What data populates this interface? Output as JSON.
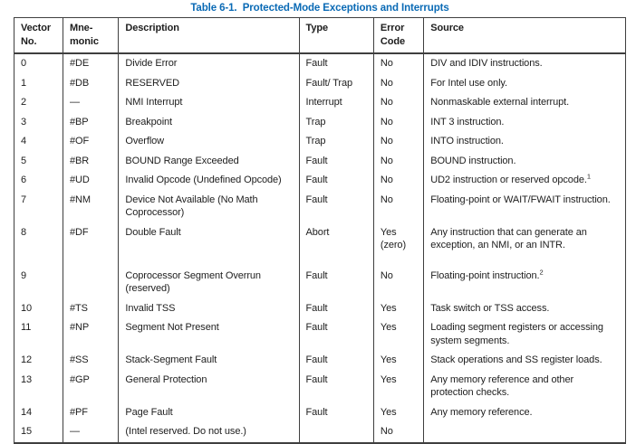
{
  "title": "Table 6-1.  Protected-Mode Exceptions and Interrupts",
  "colors": {
    "title_blue": "#0a6ab5",
    "border": "#3f3f3f",
    "text": "#1d1d1d",
    "background": "#ffffff"
  },
  "table": {
    "columns": [
      "Vector\nNo.",
      "Mne-\nmonic",
      "Description",
      "Type",
      "Error\nCode",
      "Source"
    ],
    "rows": [
      {
        "vector": "0",
        "mnemonic": "#DE",
        "description": "Divide Error",
        "type": "Fault",
        "error_code": "No",
        "source": "DIV and IDIV instructions.",
        "source_sup": ""
      },
      {
        "vector": "1",
        "mnemonic": "#DB",
        "description": "RESERVED",
        "type": "Fault/ Trap",
        "error_code": "No",
        "source": "For Intel use only.",
        "source_sup": ""
      },
      {
        "vector": "2",
        "mnemonic": "—",
        "description": "NMI Interrupt",
        "type": "Interrupt",
        "error_code": "No",
        "source": "Nonmaskable external interrupt.",
        "source_sup": ""
      },
      {
        "vector": "3",
        "mnemonic": "#BP",
        "description": "Breakpoint",
        "type": "Trap",
        "error_code": "No",
        "source": "INT 3 instruction.",
        "source_sup": ""
      },
      {
        "vector": "4",
        "mnemonic": "#OF",
        "description": "Overflow",
        "type": "Trap",
        "error_code": "No",
        "source": "INTO instruction.",
        "source_sup": ""
      },
      {
        "vector": "5",
        "mnemonic": "#BR",
        "description": "BOUND Range Exceeded",
        "type": "Fault",
        "error_code": "No",
        "source": "BOUND instruction.",
        "source_sup": ""
      },
      {
        "vector": "6",
        "mnemonic": "#UD",
        "description": "Invalid Opcode (Undefined Opcode)",
        "type": "Fault",
        "error_code": "No",
        "source": "UD2 instruction or reserved opcode.",
        "source_sup": "1"
      },
      {
        "vector": "7",
        "mnemonic": "#NM",
        "description": "Device Not Available (No Math Coprocessor)",
        "type": "Fault",
        "error_code": "No",
        "source": "Floating-point or WAIT/FWAIT instruction.",
        "source_sup": ""
      },
      {
        "vector": "8",
        "mnemonic": "#DF",
        "description": "Double Fault",
        "type": "Abort",
        "error_code": "Yes\n(zero)",
        "source": "Any instruction that can generate an exception, an NMI, or an INTR.",
        "source_sup": ""
      },
      {
        "vector": "9",
        "mnemonic": "",
        "description": "Coprocessor Segment Overrun (reserved)",
        "type": "Fault",
        "error_code": "No",
        "source": "Floating-point instruction.",
        "source_sup": "2"
      },
      {
        "vector": "10",
        "mnemonic": "#TS",
        "description": "Invalid TSS",
        "type": "Fault",
        "error_code": "Yes",
        "source": "Task switch or TSS access.",
        "source_sup": ""
      },
      {
        "vector": "11",
        "mnemonic": "#NP",
        "description": "Segment Not Present",
        "type": "Fault",
        "error_code": "Yes",
        "source": "Loading segment registers or accessing system segments.",
        "source_sup": ""
      },
      {
        "vector": "12",
        "mnemonic": "#SS",
        "description": "Stack-Segment Fault",
        "type": "Fault",
        "error_code": "Yes",
        "source": "Stack operations and SS register loads.",
        "source_sup": ""
      },
      {
        "vector": "13",
        "mnemonic": "#GP",
        "description": "General Protection",
        "type": "Fault",
        "error_code": "Yes",
        "source": "Any memory reference and other protection checks.",
        "source_sup": ""
      },
      {
        "vector": "14",
        "mnemonic": "#PF",
        "description": "Page Fault",
        "type": "Fault",
        "error_code": "Yes",
        "source": "Any memory reference.",
        "source_sup": ""
      },
      {
        "vector": "15",
        "mnemonic": "—",
        "description": "(Intel reserved. Do not use.)",
        "type": "",
        "error_code": "No",
        "source": "",
        "source_sup": ""
      }
    ]
  }
}
